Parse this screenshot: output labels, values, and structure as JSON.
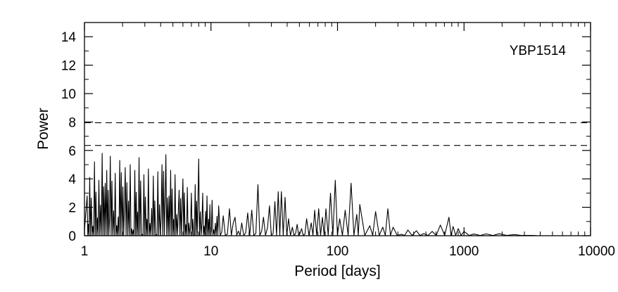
{
  "chart_data": {
    "type": "line",
    "title": "",
    "xlabel": "Period [days]",
    "ylabel": "Power",
    "xscale": "log",
    "xlim": [
      1,
      10000
    ],
    "ylim": [
      0,
      15
    ],
    "xticks": [
      {
        "value": 1,
        "label": "1"
      },
      {
        "value": 10,
        "label": "10"
      },
      {
        "value": 100,
        "label": "100"
      },
      {
        "value": 1000,
        "label": "1000"
      },
      {
        "value": 10000,
        "label": "10000"
      }
    ],
    "yticks": [
      {
        "value": 0,
        "label": "0"
      },
      {
        "value": 2,
        "label": "2"
      },
      {
        "value": 4,
        "label": "4"
      },
      {
        "value": 6,
        "label": "6"
      },
      {
        "value": 8,
        "label": "8"
      },
      {
        "value": 10,
        "label": "10"
      },
      {
        "value": 12,
        "label": "12"
      },
      {
        "value": 14,
        "label": "14"
      }
    ],
    "annotation": "YBP1514",
    "grid": false,
    "reference_lines": [
      {
        "y": 7.95,
        "style": "dashed"
      },
      {
        "y": 6.35,
        "style": "dashed"
      }
    ],
    "series": [
      {
        "style": "solid",
        "color": "#000000",
        "peaks": [
          [
            1.05,
            2.8
          ],
          [
            1.1,
            4.1
          ],
          [
            1.2,
            5.2
          ],
          [
            1.3,
            3.9
          ],
          [
            1.38,
            5.8
          ],
          [
            1.5,
            4.6
          ],
          [
            1.6,
            5.6
          ],
          [
            1.75,
            4.4
          ],
          [
            1.9,
            5.3
          ],
          [
            2.1,
            4.8
          ],
          [
            2.3,
            5.0
          ],
          [
            2.5,
            4.6
          ],
          [
            2.7,
            5.5
          ],
          [
            2.95,
            4.3
          ],
          [
            3.2,
            4.7
          ],
          [
            3.5,
            4.2
          ],
          [
            3.8,
            4.5
          ],
          [
            4.1,
            5.0
          ],
          [
            4.4,
            5.7
          ],
          [
            4.8,
            4.6
          ],
          [
            5.2,
            4.3
          ],
          [
            5.6,
            3.2
          ],
          [
            6.0,
            4.0
          ],
          [
            6.5,
            3.4
          ],
          [
            7.0,
            3.0
          ],
          [
            7.5,
            3.6
          ],
          [
            8.0,
            5.4
          ],
          [
            8.6,
            3.0
          ],
          [
            9.3,
            2.8
          ],
          [
            10.2,
            2.5
          ],
          [
            11.5,
            2.1
          ],
          [
            12.5,
            1.4
          ],
          [
            14.0,
            1.9
          ],
          [
            15.5,
            1.3
          ],
          [
            17.5,
            0.9
          ],
          [
            19.5,
            1.6
          ],
          [
            21.0,
            1.8
          ],
          [
            23.5,
            3.6
          ],
          [
            26.0,
            1.3
          ],
          [
            29.0,
            2.1
          ],
          [
            32.0,
            2.4
          ],
          [
            34.0,
            3.1
          ],
          [
            36.0,
            3.1
          ],
          [
            38.5,
            2.7
          ],
          [
            41.0,
            1.2
          ],
          [
            44.0,
            0.6
          ],
          [
            48.0,
            0.8
          ],
          [
            52.0,
            0.5
          ],
          [
            57.0,
            1.2
          ],
          [
            62.0,
            0.9
          ],
          [
            66.0,
            1.8
          ],
          [
            71.0,
            1.9
          ],
          [
            76.0,
            1.3
          ],
          [
            81.0,
            1.9
          ],
          [
            88.0,
            3.0
          ],
          [
            96.0,
            3.9
          ],
          [
            104.0,
            1.2
          ],
          [
            115.0,
            1.8
          ],
          [
            128.0,
            3.7
          ],
          [
            142.0,
            1.5
          ],
          [
            150.0,
            2.2
          ],
          [
            180.0,
            0.7
          ],
          [
            200.0,
            1.7
          ],
          [
            228.0,
            0.6
          ],
          [
            250.0,
            1.9
          ],
          [
            275.0,
            0.6
          ],
          [
            320.0,
            0.1
          ],
          [
            360.0,
            0.4
          ],
          [
            420.0,
            0.35
          ],
          [
            480.0,
            0.15
          ],
          [
            560.0,
            0.3
          ],
          [
            650.0,
            0.75
          ],
          [
            760.0,
            1.3
          ],
          [
            820.0,
            0.65
          ],
          [
            900.0,
            0.5
          ],
          [
            1000.0,
            0.3
          ],
          [
            1200.0,
            0.12
          ],
          [
            1500.0,
            0.13
          ],
          [
            1900.0,
            0.14
          ],
          [
            2500.0,
            0.08
          ],
          [
            3200.0,
            0.02
          ],
          [
            3800.0,
            0.0
          ]
        ]
      }
    ]
  }
}
